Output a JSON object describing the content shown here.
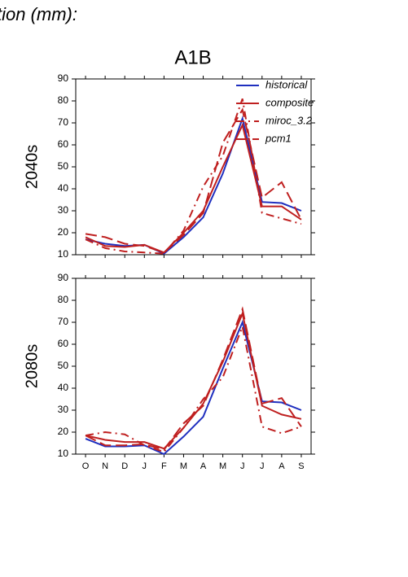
{
  "header": "tion (mm):",
  "chart_data": [
    {
      "type": "line",
      "title": "A1B",
      "ylabel": "2040s",
      "ylim": [
        10,
        90
      ],
      "yticks": [
        10,
        20,
        30,
        40,
        50,
        60,
        70,
        80,
        90
      ],
      "legend": "upper right",
      "series": [
        {
          "name": "historical",
          "color": "#1f2fbf",
          "dash": "solid",
          "values": [
            17,
            15,
            14,
            14.5,
            10.5,
            18,
            27,
            47,
            72,
            34,
            33.5,
            30
          ]
        },
        {
          "name": "composite",
          "color": "#bf1f1f",
          "dash": "solid",
          "values": [
            18,
            14,
            13.5,
            14.5,
            11,
            20,
            30,
            50,
            69,
            32,
            32,
            26
          ]
        },
        {
          "name": "miroc_3.2",
          "color": "#bf1f1f",
          "dash": "dashdot",
          "values": [
            17,
            13,
            11.5,
            11,
            10.5,
            21,
            41,
            55,
            81,
            29,
            26.5,
            24
          ]
        },
        {
          "name": "pcm1",
          "color": "#bf1f1f",
          "dash": "longdash",
          "values": [
            19.5,
            18,
            15,
            14,
            11,
            19,
            29,
            61,
            76,
            36,
            43,
            26
          ]
        }
      ]
    },
    {
      "type": "line",
      "ylabel": "2080s",
      "categories": [
        "O",
        "N",
        "D",
        "J",
        "F",
        "M",
        "A",
        "M",
        "J",
        "J",
        "A",
        "S"
      ],
      "ylim": [
        10,
        90
      ],
      "yticks": [
        10,
        20,
        30,
        40,
        50,
        60,
        70,
        80,
        90
      ],
      "series": [
        {
          "color": "#1f2fbf",
          "dash": "solid",
          "values": [
            17,
            13.5,
            13.5,
            14,
            10,
            18,
            27,
            49,
            70,
            34,
            33.5,
            30
          ]
        },
        {
          "color": "#bf1f1f",
          "dash": "solid",
          "values": [
            18.5,
            16.5,
            15.5,
            15.5,
            12.5,
            22,
            33,
            52,
            74,
            32,
            28,
            26
          ]
        },
        {
          "color": "#bf1f1f",
          "dash": "dashdot",
          "values": [
            18.5,
            20,
            19,
            14,
            11,
            22,
            35,
            45,
            68,
            22.5,
            19.5,
            22.5
          ]
        },
        {
          "color": "#bf1f1f",
          "dash": "longdash",
          "values": [
            18.5,
            14,
            14,
            14.5,
            12,
            24,
            32,
            53,
            76,
            33,
            35.5,
            22.5
          ]
        }
      ]
    }
  ]
}
